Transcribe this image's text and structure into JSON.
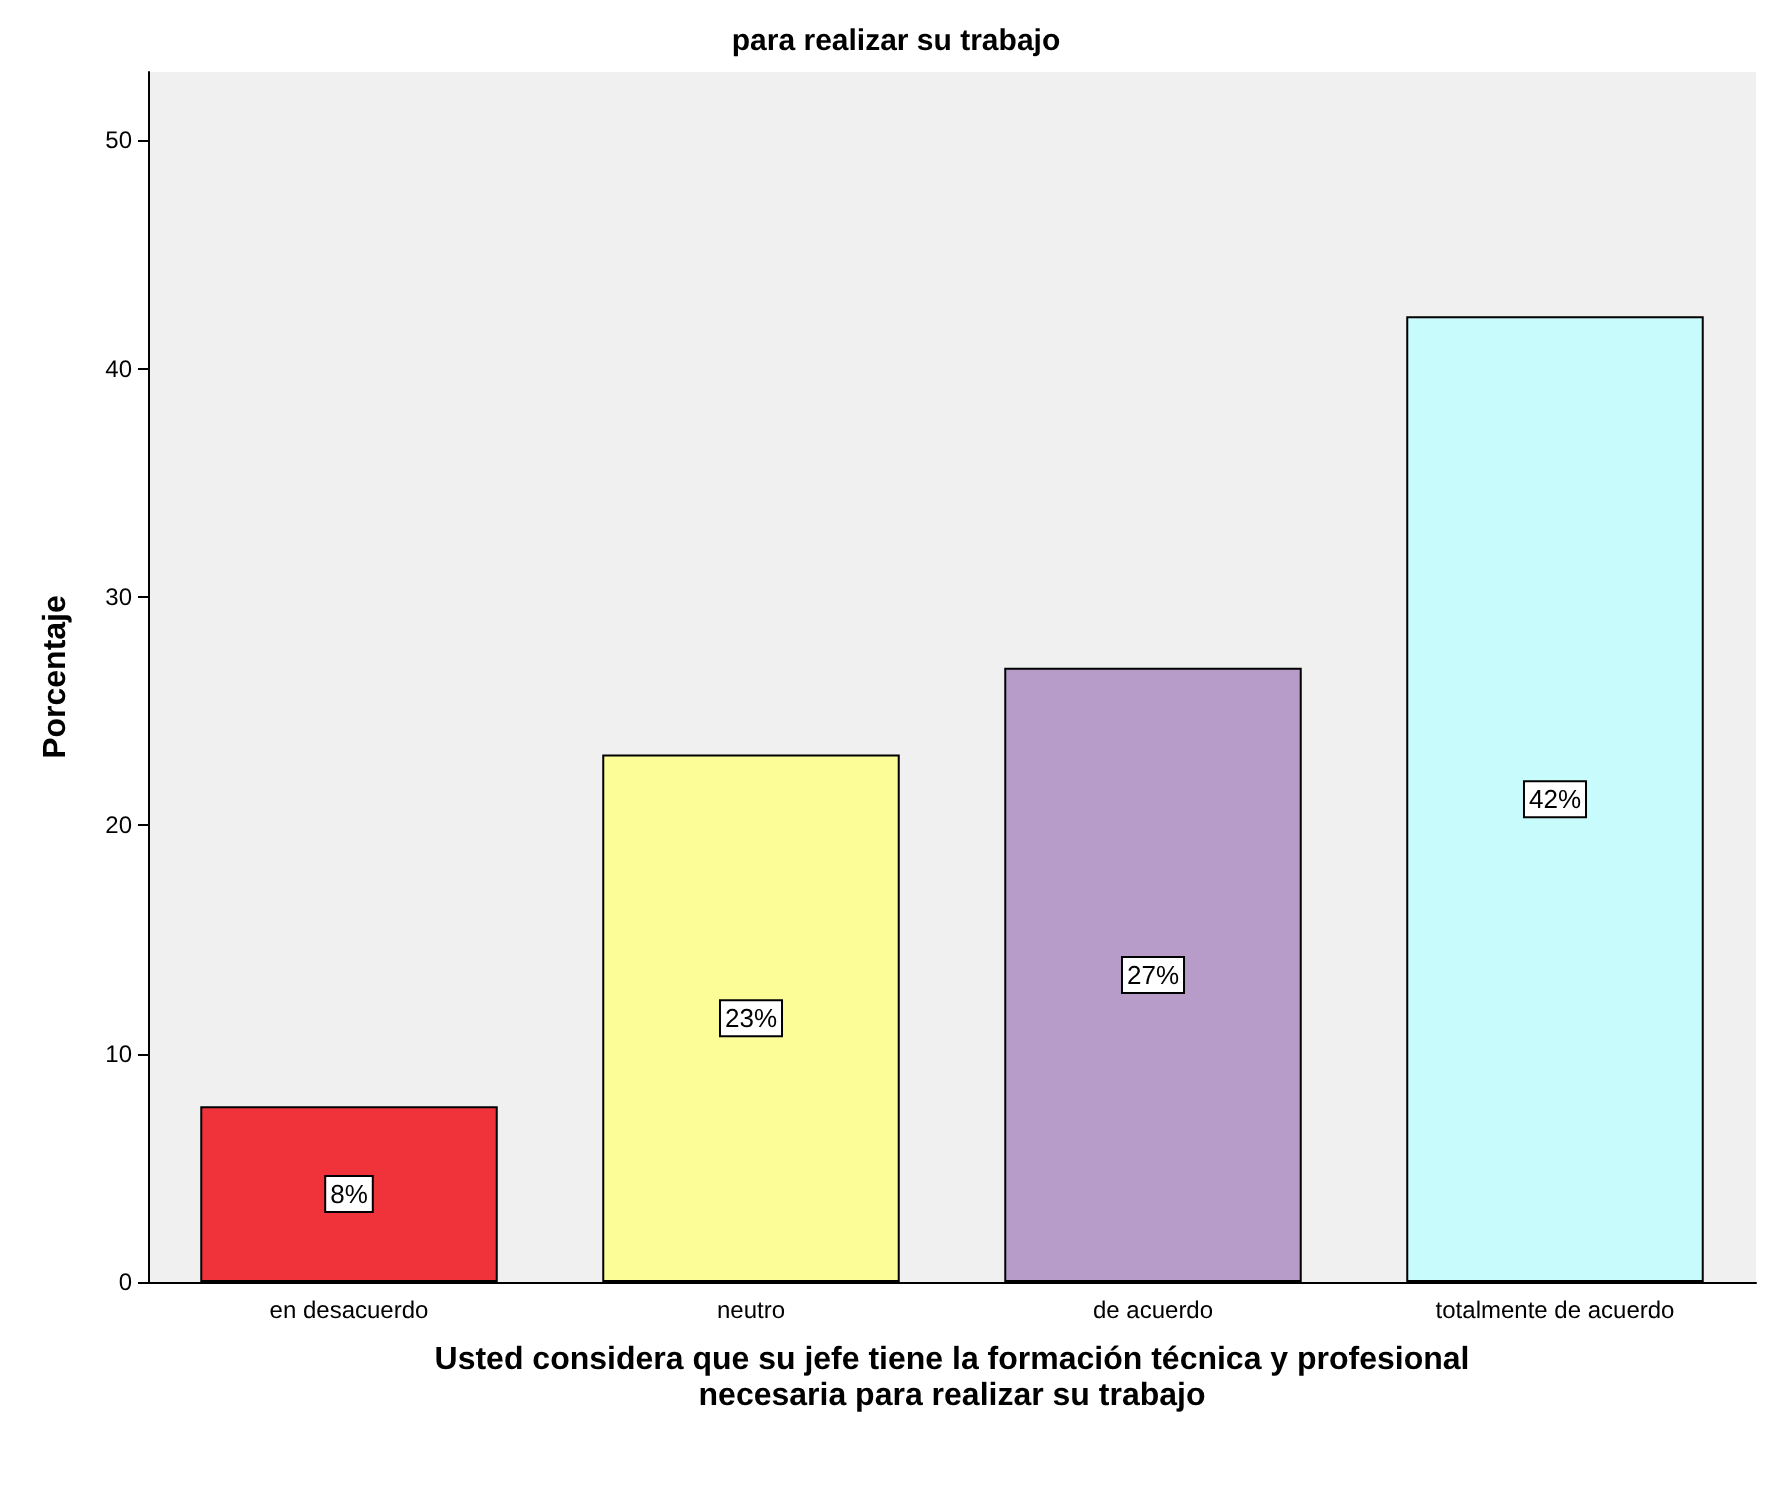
{
  "chart_data": {
    "type": "bar",
    "title": "para realizar su trabajo",
    "xlabel": "Usted considera que su jefe tiene la formación técnica y profesional\nnecesaria para realizar su trabajo",
    "ylabel": "Porcentaje",
    "categories": [
      "en desacuerdo",
      "neutro",
      "de acuerdo",
      "totalmente de acuerdo"
    ],
    "values": [
      7.7,
      23.1,
      26.9,
      42.3
    ],
    "value_labels": [
      "8%",
      "23%",
      "27%",
      "42%"
    ],
    "colors": [
      "#f0333a",
      "#fdfd98",
      "#b79bc8",
      "#c8fcfc"
    ],
    "ylim": [
      0,
      53
    ],
    "yticks": [
      0,
      10,
      20,
      30,
      40,
      50
    ]
  }
}
